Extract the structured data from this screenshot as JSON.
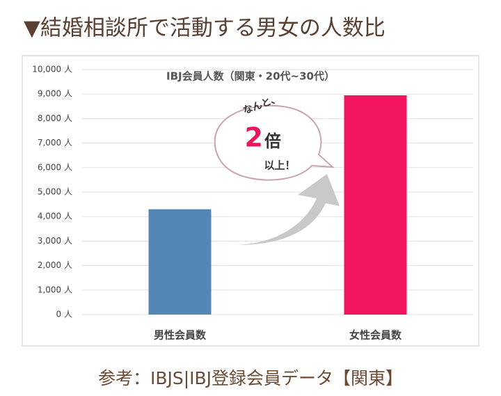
{
  "header": {
    "title": "▼結婚相談所で活動する男女の人数比"
  },
  "chart_data": {
    "type": "bar",
    "title": "IBJ会員人数（関東・20代~30代）",
    "categories": [
      "男性会員数",
      "女性会員数"
    ],
    "values": [
      4300,
      8950
    ],
    "colors": [
      "#5385b5",
      "#f2145f"
    ],
    "ylim": [
      0,
      10000
    ],
    "yticks": [
      {
        "value": 0,
        "label": "0 人"
      },
      {
        "value": 1000,
        "label": "1,000 人"
      },
      {
        "value": 2000,
        "label": "2,000 人"
      },
      {
        "value": 3000,
        "label": "3,000 人"
      },
      {
        "value": 4000,
        "label": "4,000 人"
      },
      {
        "value": 5000,
        "label": "5,000 人"
      },
      {
        "value": 6000,
        "label": "6,000 人"
      },
      {
        "value": 7000,
        "label": "7,000 人"
      },
      {
        "value": 8000,
        "label": "8,000 人"
      },
      {
        "value": 9000,
        "label": "9,000 人"
      },
      {
        "value": 10000,
        "label": "10,000 人"
      }
    ],
    "grid": true,
    "annotations": [
      "なんと、",
      "2",
      "倍",
      "以上！"
    ]
  },
  "caption": "参考：IBJS|IBJ登録会員データ【関東】"
}
